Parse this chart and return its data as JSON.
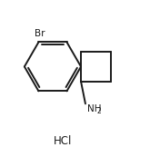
{
  "background_color": "#ffffff",
  "line_color": "#1a1a1a",
  "line_width": 1.4,
  "text_color": "#1a1a1a",
  "hcl_label": "HCl",
  "br_label": "Br",
  "figsize": [
    1.65,
    1.73
  ],
  "dpi": 100,
  "xlim": [
    0.0,
    10.0
  ],
  "ylim": [
    0.0,
    10.0
  ]
}
